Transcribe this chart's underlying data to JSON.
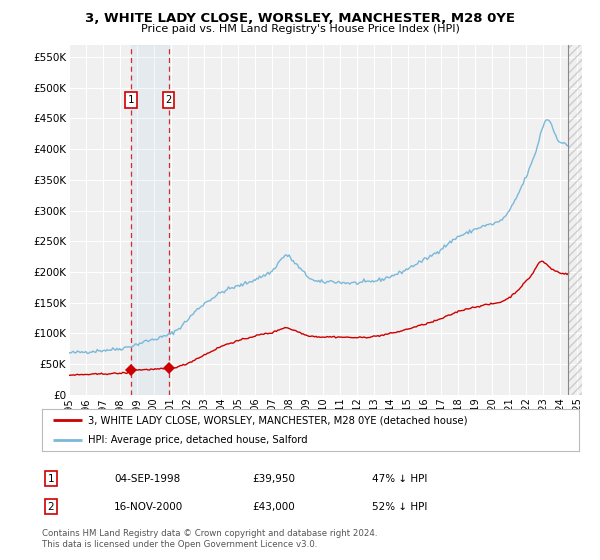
{
  "title": "3, WHITE LADY CLOSE, WORSLEY, MANCHESTER, M28 0YE",
  "subtitle": "Price paid vs. HM Land Registry's House Price Index (HPI)",
  "ylabel_ticks": [
    "£0",
    "£50K",
    "£100K",
    "£150K",
    "£200K",
    "£250K",
    "£300K",
    "£350K",
    "£400K",
    "£450K",
    "£500K",
    "£550K"
  ],
  "ytick_values": [
    0,
    50000,
    100000,
    150000,
    200000,
    250000,
    300000,
    350000,
    400000,
    450000,
    500000,
    550000
  ],
  "ylim": [
    0,
    570000
  ],
  "xlim_start": 1995.3,
  "xlim_end": 2025.3,
  "hpi_color": "#7ab8d9",
  "price_color": "#cc0000",
  "sale1_date": 1998.67,
  "sale1_price": 39950,
  "sale2_date": 2000.88,
  "sale2_price": 43000,
  "sale1_date_str": "04-SEP-1998",
  "sale1_price_str": "£39,950",
  "sale1_hpi_str": "47% ↓ HPI",
  "sale2_date_str": "16-NOV-2000",
  "sale2_price_str": "£43,000",
  "sale2_hpi_str": "52% ↓ HPI",
  "legend_line1": "3, WHITE LADY CLOSE, WORSLEY, MANCHESTER, M28 0YE (detached house)",
  "legend_line2": "HPI: Average price, detached house, Salford",
  "footnote": "Contains HM Land Registry data © Crown copyright and database right 2024.\nThis data is licensed under the Open Government Licence v3.0.",
  "background_color": "#ffffff",
  "plot_bg_color": "#f0f0f0",
  "hatch_cutoff": 2024.5
}
